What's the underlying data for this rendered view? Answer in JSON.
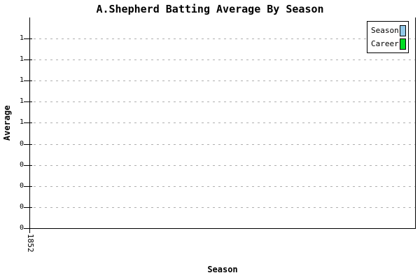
{
  "chart_data": {
    "type": "bar",
    "title": "A.Shepherd Batting Average By Season",
    "xlabel": "Season",
    "ylabel": "Average",
    "categories": [
      "1852"
    ],
    "x_tick_labels": [
      "1852"
    ],
    "y_tick_labels_top_to_bottom": [
      "1",
      "1",
      "1",
      "1",
      "1",
      "0",
      "0",
      "0",
      "0",
      "0"
    ],
    "y_axis_implied_range": [
      0,
      1
    ],
    "grid": "horizontal dashed light-gray line at each y tick",
    "legend_position": "top-right",
    "series": [
      {
        "name": "Season",
        "color": "#92C8E8",
        "values": []
      },
      {
        "name": "Career",
        "color": "#00DD22",
        "values": []
      }
    ],
    "plotted_points": "none visible (empty plot area)"
  },
  "colors": {
    "background": "#ffffff",
    "axis": "#000000",
    "grid": "#b0b0b0",
    "text": "#000000",
    "season_swatch": "#92C8E8",
    "career_swatch": "#00DD22"
  }
}
